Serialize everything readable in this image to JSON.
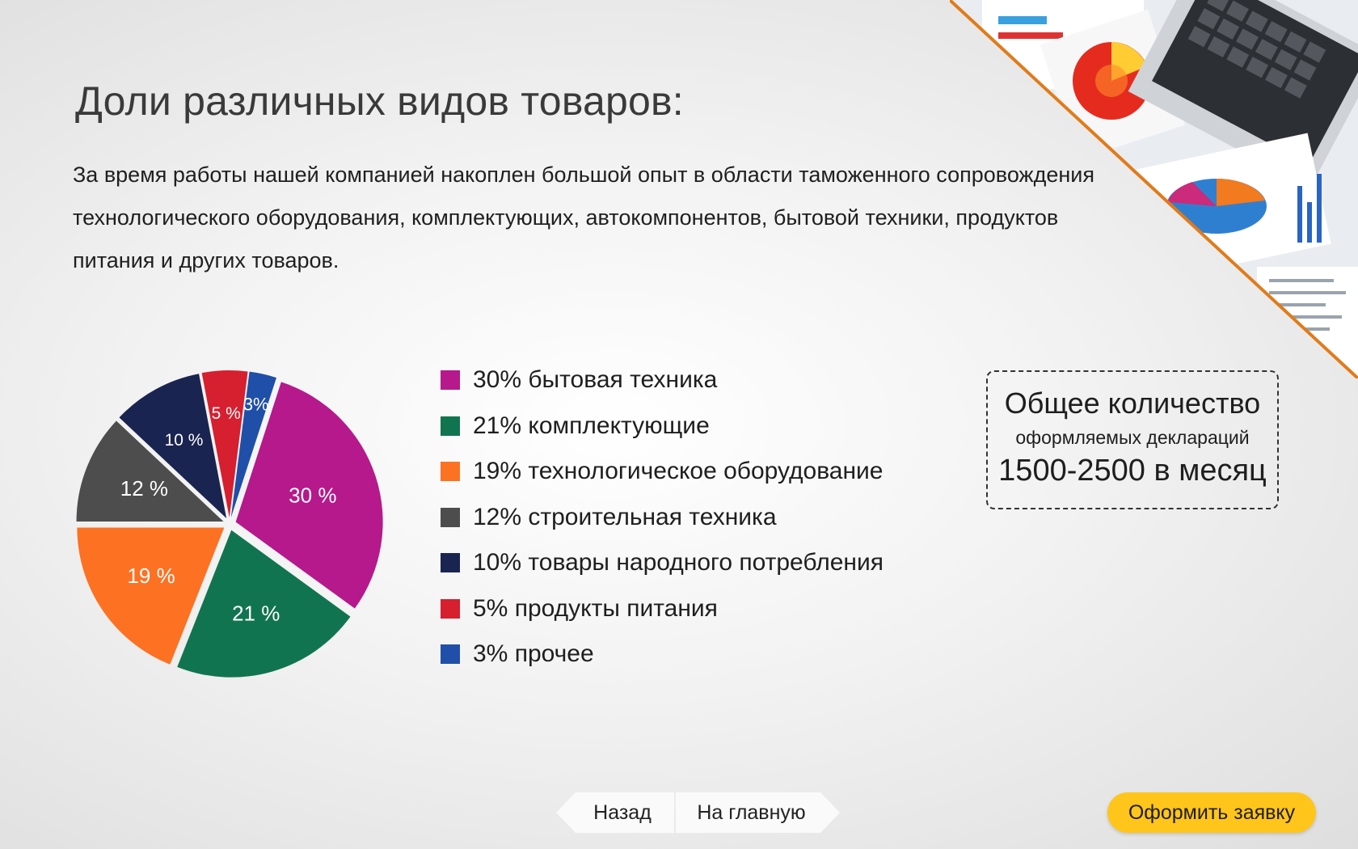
{
  "title": "Доли различных видов товаров:",
  "intro": "За время работы нашей компанией накоплен большой опыт в области таможенного сопровождения технологического оборудования, комплектующих, автокомпонентов, бытовой техники, продуктов питания и других товаров.",
  "chart_data": {
    "type": "pie",
    "title": "",
    "legend_position": "right",
    "slices": [
      {
        "label": "30% бытовая техника",
        "value": 30,
        "slice_label": "30 %",
        "color": "#b5198b"
      },
      {
        "label": "21% комплектующие",
        "value": 21,
        "slice_label": "21 %",
        "color": "#117451"
      },
      {
        "label": "19% технологическое оборудование",
        "value": 19,
        "slice_label": "19 %",
        "color": "#fd7123"
      },
      {
        "label": "12% строительная техника",
        "value": 12,
        "slice_label": "12 %",
        "color": "#4d4d4d"
      },
      {
        "label": "10% товары народного потребления",
        "value": 10,
        "slice_label": "10 %",
        "color": "#1a2450"
      },
      {
        "label": "5% продукты питания",
        "value": 5,
        "slice_label": "5 %",
        "color": "#d61f2f"
      },
      {
        "label": "3% прочее",
        "value": 3,
        "slice_label": "3%",
        "color": "#1f4fa8"
      }
    ]
  },
  "stats": {
    "line1": "Общее количество",
    "line2": "оформляемых деклараций",
    "line3": "1500-2500 в месяц"
  },
  "nav": {
    "back_label": "Назад",
    "home_label": "На главную"
  },
  "order_label": "Оформить заявку",
  "colors": {
    "accent_button": "#ffc51a",
    "corner_border": "#e07b1a"
  }
}
